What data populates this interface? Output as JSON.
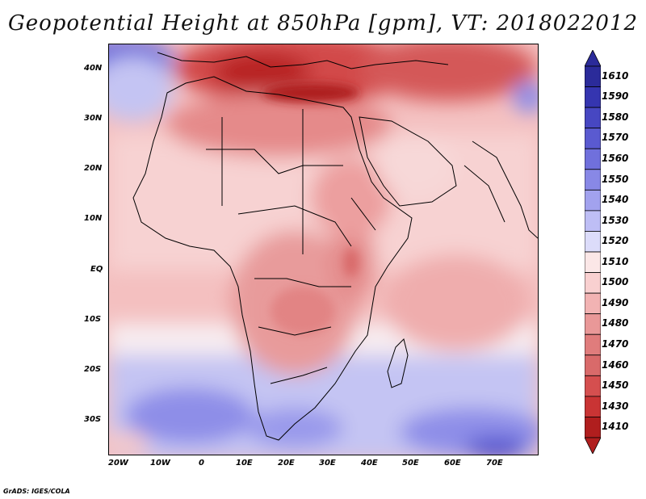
{
  "title": "Geopotential Height at 850hPa [gpm], VT: 2018022012",
  "credit": "GrADS: IGES/COLA",
  "map": {
    "lat_labels": [
      "40N",
      "30N",
      "20N",
      "10N",
      "EQ",
      "10S",
      "20S",
      "30S"
    ],
    "lon_labels": [
      "20W",
      "10W",
      "0",
      "10E",
      "20E",
      "30E",
      "40E",
      "50E",
      "60E",
      "70E"
    ],
    "region": "Africa, Middle East and western Indian Ocean",
    "lon_range": [
      -23,
      80
    ],
    "lat_range": [
      -37,
      45
    ]
  },
  "colorbar": {
    "levels": [
      "1610",
      "1590",
      "1580",
      "1570",
      "1560",
      "1550",
      "1540",
      "1530",
      "1520",
      "1510",
      "1500",
      "1490",
      "1480",
      "1470",
      "1460",
      "1450",
      "1430",
      "1410"
    ],
    "colors": [
      "#2b2b9a",
      "#3535b0",
      "#4747c2",
      "#5a5ad0",
      "#7070dc",
      "#8888e6",
      "#a2a2ee",
      "#bebef5",
      "#dcdcfa",
      "#fbe7e7",
      "#f9d0d0",
      "#f2b3b3",
      "#e99898",
      "#e07c7c",
      "#d96a6a",
      "#d54f4f",
      "#c93434",
      "#b01e1e"
    ]
  }
}
